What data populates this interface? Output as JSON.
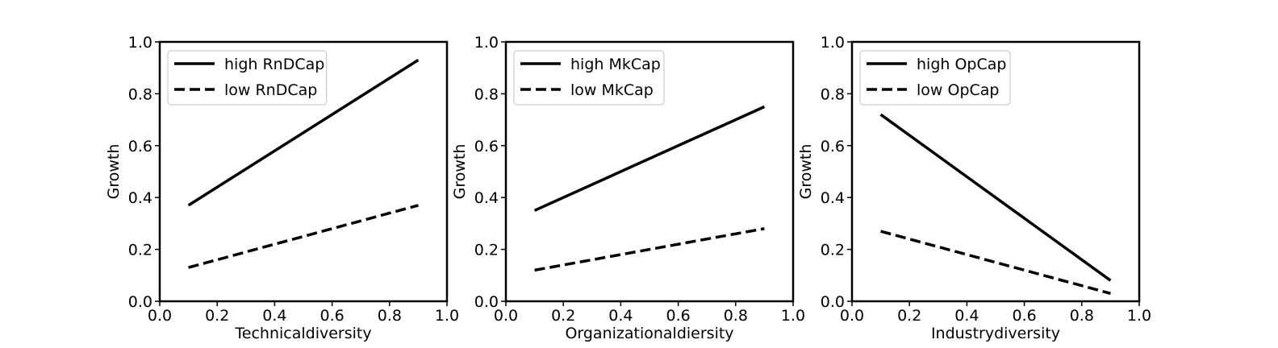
{
  "chart_data": [
    {
      "type": "line",
      "xlabel": "Technicaldiversity",
      "ylabel": "Growth",
      "xlim": [
        0.0,
        1.0
      ],
      "ylim": [
        0.0,
        1.0
      ],
      "xticks": [
        "0.0",
        "0.2",
        "0.4",
        "0.6",
        "0.8",
        "1.0"
      ],
      "yticks": [
        "0.0",
        "0.2",
        "0.4",
        "0.6",
        "0.8",
        "1.0"
      ],
      "legend_position": "upper-left",
      "series": [
        {
          "name": "high RnDCap",
          "style": "solid",
          "x": [
            0.1,
            0.9
          ],
          "y": [
            0.37,
            0.93
          ]
        },
        {
          "name": "low RnDCap",
          "style": "dashed",
          "x": [
            0.1,
            0.9
          ],
          "y": [
            0.13,
            0.37
          ]
        }
      ]
    },
    {
      "type": "line",
      "xlabel": "Organizationaldiersity",
      "ylabel": "Growth",
      "xlim": [
        0.0,
        1.0
      ],
      "ylim": [
        0.0,
        1.0
      ],
      "xticks": [
        "0.0",
        "0.2",
        "0.4",
        "0.6",
        "0.8",
        "1.0"
      ],
      "yticks": [
        "0.0",
        "0.2",
        "0.4",
        "0.6",
        "0.8",
        "1.0"
      ],
      "legend_position": "upper-left",
      "series": [
        {
          "name": "high MkCap",
          "style": "solid",
          "x": [
            0.1,
            0.9
          ],
          "y": [
            0.35,
            0.75
          ]
        },
        {
          "name": "low MkCap",
          "style": "dashed",
          "x": [
            0.1,
            0.9
          ],
          "y": [
            0.12,
            0.28
          ]
        }
      ]
    },
    {
      "type": "line",
      "xlabel": "Industrydiversity",
      "ylabel": "Growth",
      "xlim": [
        0.0,
        1.0
      ],
      "ylim": [
        0.0,
        1.0
      ],
      "xticks": [
        "0.0",
        "0.2",
        "0.4",
        "0.6",
        "0.8",
        "1.0"
      ],
      "yticks": [
        "0.0",
        "0.2",
        "0.4",
        "0.6",
        "0.8",
        "1.0"
      ],
      "legend_position": "upper-left",
      "series": [
        {
          "name": "high OpCap",
          "style": "solid",
          "x": [
            0.1,
            0.9
          ],
          "y": [
            0.72,
            0.08
          ]
        },
        {
          "name": "low OpCap",
          "style": "dashed",
          "x": [
            0.1,
            0.9
          ],
          "y": [
            0.27,
            0.03
          ]
        }
      ]
    }
  ],
  "colors": {
    "line": "#000000",
    "background": "#ffffff",
    "legend_border": "#cccccc"
  }
}
